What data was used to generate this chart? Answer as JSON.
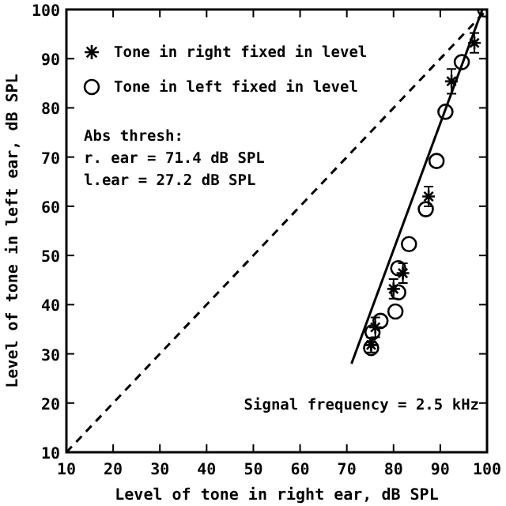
{
  "chart_data": {
    "type": "scatter",
    "xlabel": "Level of tone in right ear, dB SPL",
    "ylabel": "Level of tone in left ear, dB SPL",
    "xlim": [
      10,
      100
    ],
    "ylim": [
      10,
      100
    ],
    "xticks": [
      10,
      20,
      30,
      40,
      50,
      60,
      70,
      80,
      90,
      100
    ],
    "yticks": [
      10,
      20,
      30,
      40,
      50,
      60,
      70,
      80,
      90,
      100
    ],
    "legend": "top left",
    "grid": false,
    "series": [
      {
        "name": "Tone in right fixed in level",
        "marker": "cross",
        "color": "#000000",
        "x": [
          97.3,
          92.4,
          87.5,
          82,
          80,
          76.1,
          75.2
        ],
        "values": [
          93.2,
          85.4,
          62,
          46.4,
          43.2,
          35.4,
          31.8
        ],
        "errors": [
          2,
          2.5,
          2,
          2,
          2,
          2,
          1.5
        ]
      },
      {
        "name": "Tone in left fixed in level",
        "marker": "circle",
        "color": "#000000",
        "x": [
          99.6,
          94.6,
          91.1,
          89.2,
          86.9,
          83.3,
          81,
          81,
          80.4,
          77.2,
          75.5,
          75.2
        ],
        "values": [
          100,
          89.3,
          79.2,
          69.2,
          59.4,
          52.3,
          47.4,
          42.5,
          38.6,
          36.7,
          34.4,
          31.2
        ]
      },
      {
        "type": "line",
        "marker": "none",
        "line_style": "solid",
        "color": "#000000",
        "x": [
          71,
          99
        ],
        "values": [
          28,
          100
        ]
      },
      {
        "type": "line",
        "marker": "none",
        "line_style": "dashed",
        "color": "#000000",
        "x": [
          10,
          100
        ],
        "values": [
          10,
          100
        ]
      }
    ],
    "annotations": [
      "Abs thresh:",
      "r. ear = 71.4 dB SPL",
      "l.ear = 27.2 dB SPL",
      "Signal frequency = 2.5 kHz"
    ]
  }
}
